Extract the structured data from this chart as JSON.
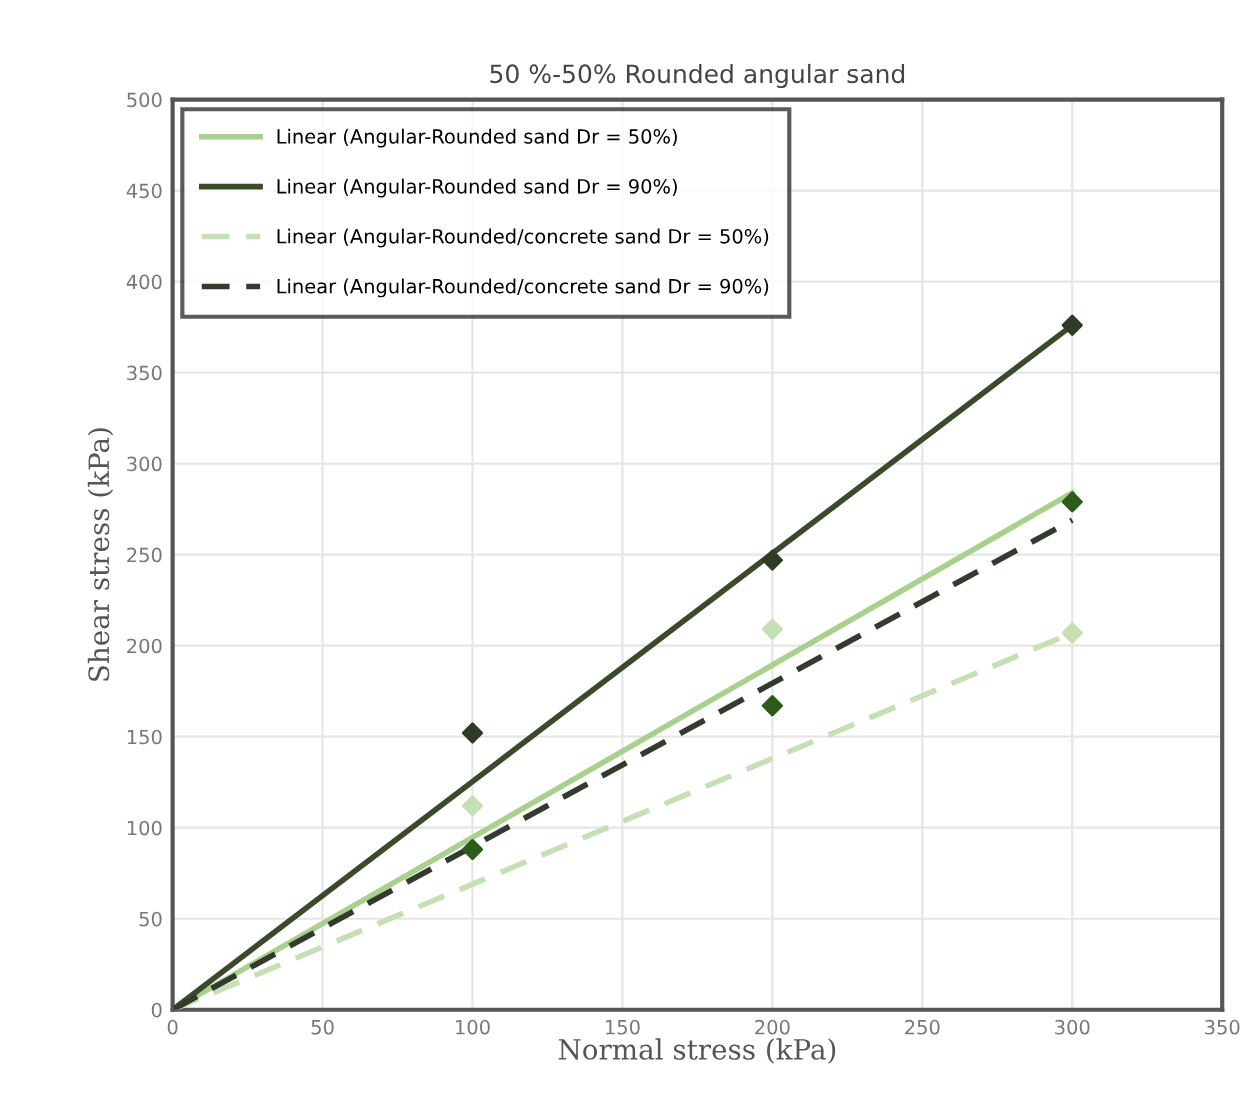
{
  "chart_data": {
    "type": "line",
    "title": "50 %-50% Rounded angular sand",
    "xlabel": "Normal stress (kPa)",
    "ylabel": "Shear stress (kPa)",
    "xlim": [
      0,
      350
    ],
    "xticks": [
      0,
      50,
      100,
      150,
      200,
      250,
      300,
      350
    ],
    "ylim": [
      0,
      500
    ],
    "yticks": [
      0,
      50,
      100,
      150,
      200,
      250,
      300,
      350,
      400,
      450,
      500
    ],
    "grid": true,
    "legend": "top left",
    "series": [
      {
        "name": "Linear (Angular-Rounded sand Dr = 50%)",
        "color": "#a9d18e",
        "line_style": "solid",
        "x": [
          0,
          300
        ],
        "values": [
          0,
          284
        ]
      },
      {
        "name": "Linear (Angular-Rounded sand Dr = 90%)",
        "color": "#3b4a2c",
        "line_style": "solid",
        "x": [
          0,
          300
        ],
        "values": [
          0,
          376
        ]
      },
      {
        "name": "Linear (Angular-Rounded/concrete sand Dr = 50%)",
        "color": "#c5e0b4",
        "line_style": "dashed",
        "x": [
          0,
          300
        ],
        "values": [
          0,
          207
        ]
      },
      {
        "name": "Linear (Angular-Rounded/concrete sand Dr = 90%)",
        "color": "#333a2e",
        "line_style": "dashed",
        "x": [
          0,
          300
        ],
        "values": [
          0,
          269
        ]
      },
      {
        "type": "scatter",
        "marker": "diamond",
        "color": "#2f3b26",
        "x": [
          100,
          200,
          300
        ],
        "values": [
          152,
          247,
          376
        ]
      },
      {
        "type": "scatter",
        "marker": "diamond",
        "color": "#2e5a1c",
        "x": [
          100,
          200,
          300
        ],
        "values": [
          88,
          167,
          279
        ]
      },
      {
        "type": "scatter",
        "marker": "diamond",
        "color": "#c5e0b4",
        "x": [
          100,
          200,
          300
        ],
        "values": [
          112,
          209,
          207
        ]
      }
    ]
  }
}
